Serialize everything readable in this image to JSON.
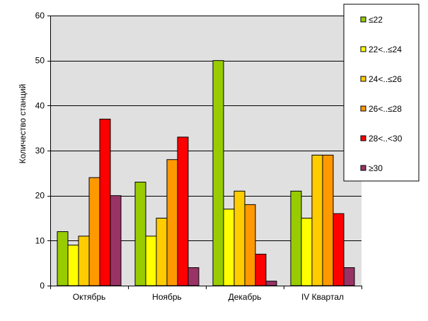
{
  "chart_data": {
    "type": "bar",
    "categories": [
      "Октябрь",
      "Ноябрь",
      "Декабрь",
      "IV Квартал"
    ],
    "series": [
      {
        "name": "≤22",
        "color": "#99cc00",
        "values": [
          12,
          23,
          50,
          21
        ]
      },
      {
        "name": "22<..≤24",
        "color": "#ffff00",
        "values": [
          9,
          11,
          17,
          15
        ]
      },
      {
        "name": "24<..≤26",
        "color": "#ffcc00",
        "values": [
          11,
          15,
          21,
          29
        ]
      },
      {
        "name": "26<..≤28",
        "color": "#ff9900",
        "values": [
          24,
          28,
          18,
          29
        ]
      },
      {
        "name": "28<..<30",
        "color": "#ff0000",
        "values": [
          37,
          33,
          7,
          16
        ]
      },
      {
        "name": "≥30",
        "color": "#993366",
        "values": [
          20,
          4,
          1,
          4
        ]
      }
    ],
    "ylabel": "Количество  станций",
    "ylim": [
      0,
      60
    ],
    "yticks": [
      0,
      10,
      20,
      30,
      40,
      50,
      60
    ],
    "grid": true,
    "legend": "top-right",
    "plot_background": "#e0e0e0"
  }
}
